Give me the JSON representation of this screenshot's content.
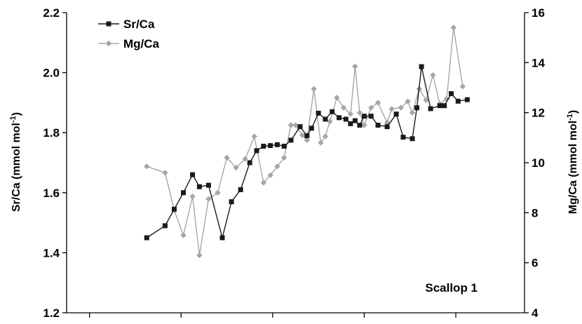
{
  "chart_data": {
    "type": "line",
    "title": "",
    "xlabel": "",
    "ylabel_left": "Sr/Ca (mmol mol",
    "ylabel_left_sup": "-1",
    "ylabel_left_close": ")",
    "ylabel_right": "Mg/Ca (mmol mol",
    "ylabel_right_sup": "-1",
    "ylabel_right_close": ")",
    "ylim_left": [
      1.2,
      2.2
    ],
    "ylim_right": [
      4,
      16
    ],
    "xlim": [
      0,
      100
    ],
    "x_ticks": [
      5,
      25,
      45,
      65,
      85
    ],
    "y_ticks_left": [
      "1.2",
      "1.4",
      "1.6",
      "1.8",
      "2.0",
      "2.2"
    ],
    "y_ticks_right": [
      "4",
      "6",
      "8",
      "10",
      "12",
      "14",
      "16"
    ],
    "annotation": "Scallop 1",
    "legend_position": "top-left",
    "grid": false,
    "series": [
      {
        "name": "Sr/Ca",
        "axis": "left",
        "color": "#1a1a1a",
        "marker": "square",
        "x": [
          17.5,
          21.5,
          23.5,
          25.5,
          27.5,
          29,
          31,
          34,
          36,
          38,
          40,
          41.5,
          43,
          44.5,
          46,
          47.5,
          49,
          51,
          52.5,
          53.5,
          55,
          56.5,
          58,
          59.5,
          61,
          62,
          63,
          64,
          65,
          66.5,
          68,
          70,
          72,
          73.5,
          75.5,
          76.5,
          77.5,
          79.5,
          81.5,
          82.5,
          84,
          85.5,
          87.5
        ],
        "y": [
          1.45,
          1.49,
          1.545,
          1.6,
          1.66,
          1.62,
          1.625,
          1.45,
          1.57,
          1.61,
          1.7,
          1.74,
          1.755,
          1.757,
          1.76,
          1.755,
          1.775,
          1.82,
          1.79,
          1.815,
          1.865,
          1.845,
          1.87,
          1.85,
          1.845,
          1.83,
          1.84,
          1.825,
          1.855,
          1.855,
          1.825,
          1.82,
          1.862,
          1.785,
          1.78,
          1.883,
          2.02,
          1.88,
          1.89,
          1.89,
          1.93,
          1.905,
          1.91
        ]
      },
      {
        "name": "Mg/Ca",
        "axis": "right",
        "color": "#a6a6a6",
        "marker": "diamond",
        "x": [
          17.5,
          21.5,
          23.5,
          25.5,
          27.5,
          29,
          31,
          33,
          35,
          37,
          39,
          41,
          43,
          44.5,
          46,
          47.5,
          49,
          50,
          51.5,
          52.5,
          54,
          55.5,
          56.5,
          57.5,
          59,
          60.5,
          62,
          63,
          64,
          65,
          66.5,
          68,
          70,
          71,
          73,
          74.5,
          75.5,
          77,
          78.5,
          80,
          81.5,
          83,
          84.5,
          86.5
        ],
        "y": [
          9.85,
          9.6,
          8.1,
          7.1,
          8.65,
          6.3,
          8.55,
          8.8,
          10.2,
          9.8,
          10.15,
          11.05,
          9.2,
          9.5,
          9.85,
          10.2,
          11.5,
          11.5,
          11.1,
          10.9,
          12.95,
          10.8,
          11.05,
          11.65,
          12.6,
          12.2,
          11.95,
          13.85,
          12.0,
          11.5,
          12.2,
          12.4,
          11.6,
          12.15,
          12.2,
          12.45,
          12.0,
          12.95,
          12.5,
          13.5,
          12.35,
          12.55,
          15.4,
          13.05
        ]
      }
    ]
  }
}
